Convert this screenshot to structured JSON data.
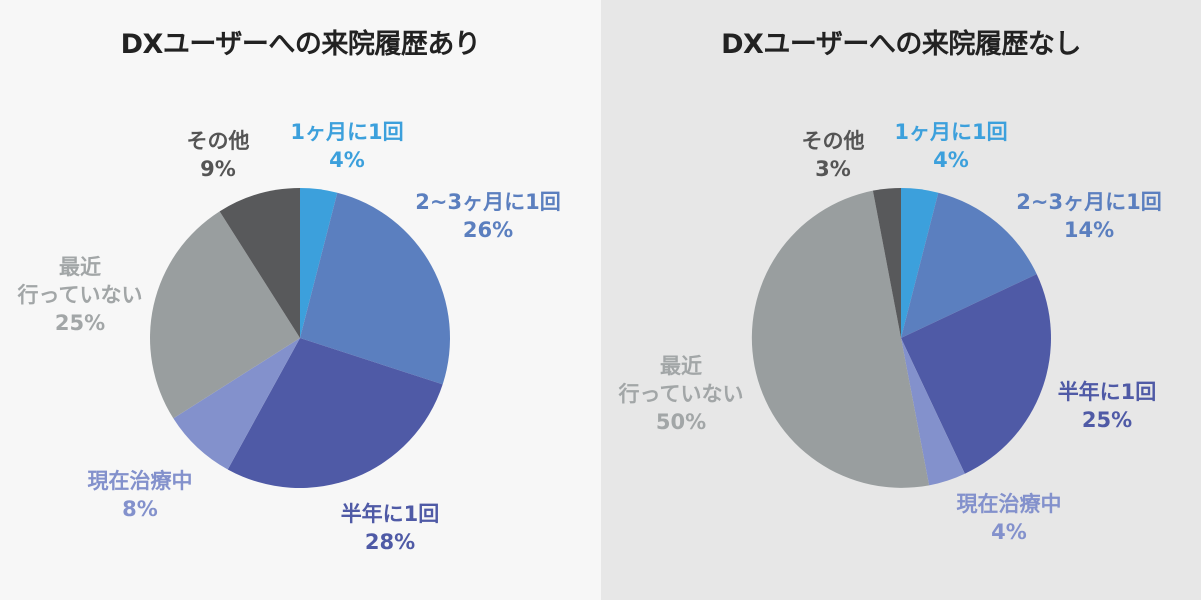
{
  "chart_data": [
    {
      "type": "pie",
      "title": "DXユーザーへの来院履歴あり",
      "slices": [
        {
          "label": "1ヶ月に1回",
          "value": 4,
          "value_label": "4%",
          "color": "#3ca0dc"
        },
        {
          "label": "2~3ヶ月に1回",
          "value": 26,
          "value_label": "26%",
          "color": "#5b7fbf"
        },
        {
          "label": "半年に1回",
          "value": 28,
          "value_label": "28%",
          "color": "#4f5aa6"
        },
        {
          "label": "現在治療中",
          "value": 8,
          "value_label": "8%",
          "color": "#8391cc"
        },
        {
          "label": "最近\n行っていない",
          "value": 25,
          "value_label": "25%",
          "color": "#999e9f"
        },
        {
          "label": "その他",
          "value": 9,
          "value_label": "9%",
          "color": "#58595b"
        }
      ]
    },
    {
      "type": "pie",
      "title": "DXユーザーへの来院履歴なし",
      "slices": [
        {
          "label": "1ヶ月に1回",
          "value": 4,
          "value_label": "4%",
          "color": "#3ca0dc"
        },
        {
          "label": "2~3ヶ月に1回",
          "value": 14,
          "value_label": "14%",
          "color": "#5b7fbf"
        },
        {
          "label": "半年に1回",
          "value": 25,
          "value_label": "25%",
          "color": "#4f5aa6"
        },
        {
          "label": "現在治療中",
          "value": 4,
          "value_label": "4%",
          "color": "#8391cc"
        },
        {
          "label": "最近\n行っていない",
          "value": 50,
          "value_label": "50%",
          "color": "#999e9f"
        },
        {
          "label": "その他",
          "value": 3,
          "value_label": "3%",
          "color": "#58595b"
        }
      ]
    }
  ],
  "label_colors": [
    "#3ca0dc",
    "#5b7fbf",
    "#4f5aa6",
    "#8391cc",
    "#a2a6a7",
    "#555555"
  ]
}
